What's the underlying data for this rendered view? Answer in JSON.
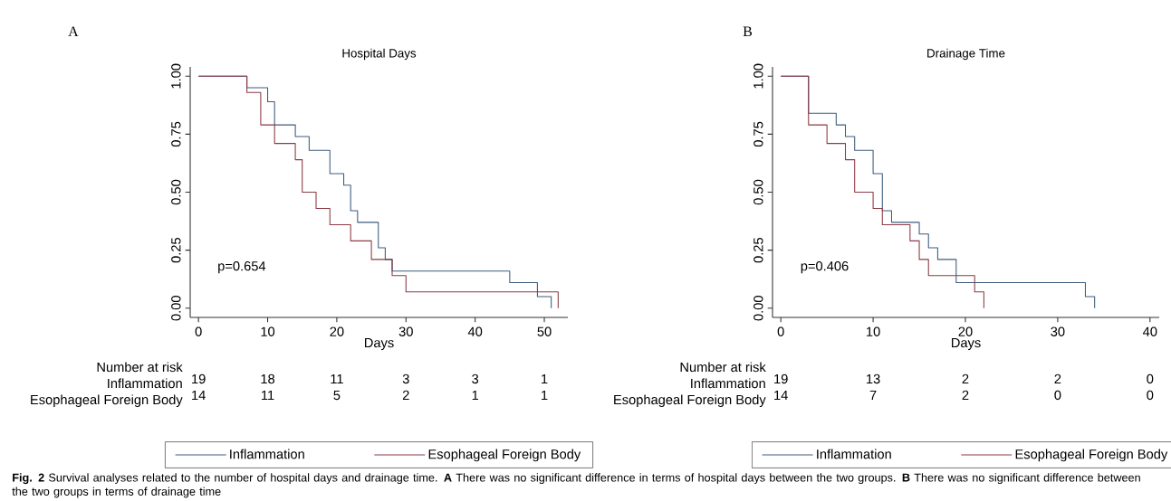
{
  "chart_data": [
    {
      "type": "step",
      "title": "Hospital Days",
      "xlabel": "Days",
      "xlim": [
        -1.2,
        53.4
      ],
      "ylim": [
        -0.04,
        1.04
      ],
      "xticks": [
        0,
        10,
        20,
        30,
        40,
        50
      ],
      "yticks": [
        {
          "value": 0,
          "label": "0.00"
        },
        {
          "value": 0.25,
          "label": "0.25"
        },
        {
          "value": 0.5,
          "label": "0.50"
        },
        {
          "value": 0.75,
          "label": "0.75"
        },
        {
          "value": 1,
          "label": "1.00"
        }
      ],
      "legend": "bottom",
      "grid": false,
      "series": [
        {
          "name": "Inflammation",
          "color": "#3e5c7e",
          "x": [
            0,
            7,
            10,
            11,
            14,
            16,
            19,
            21,
            22,
            23,
            26,
            27,
            28,
            45,
            49,
            51
          ],
          "values": [
            1,
            0.95,
            0.89,
            0.79,
            0.74,
            0.68,
            0.58,
            0.53,
            0.42,
            0.37,
            0.26,
            0.21,
            0.16,
            0.11,
            0.05,
            0
          ]
        },
        {
          "name": "Esophageal Foreign Body",
          "color": "#8b3a44",
          "x": [
            0,
            7,
            9,
            11,
            14,
            15,
            17,
            19,
            22,
            25,
            28,
            30,
            52
          ],
          "values": [
            1,
            0.93,
            0.79,
            0.71,
            0.64,
            0.5,
            0.43,
            0.36,
            0.29,
            0.21,
            0.14,
            0.07,
            0
          ]
        }
      ],
      "annotations": [
        "A",
        "p=0.654",
        "Number at risk",
        "Inflammation",
        "Esophageal Foreign Body",
        "19",
        "18",
        "11",
        "3",
        "3",
        "1",
        "14",
        "11",
        "5",
        "2",
        "1",
        "1",
        "**Fig. 2**  Survival analyses related to the number of hospital days and drainage time. **A** There was no significant difference in terms of hospital days between the two groups. **B** There was no significant difference between the two groups in terms of drainage time"
      ]
    },
    {
      "type": "step",
      "title": "Drainage Time",
      "xlabel": "Days",
      "xlim": [
        -0.9,
        41
      ],
      "ylim": [
        -0.04,
        1.04
      ],
      "xticks": [
        0,
        10,
        20,
        30,
        40
      ],
      "yticks": [
        {
          "value": 0,
          "label": "0.00"
        },
        {
          "value": 0.25,
          "label": "0.25"
        },
        {
          "value": 0.5,
          "label": "0.50"
        },
        {
          "value": 0.75,
          "label": "0.75"
        },
        {
          "value": 1,
          "label": "1.00"
        }
      ],
      "legend": "bottom",
      "grid": false,
      "series": [
        {
          "name": "Inflammation",
          "color": "#3e5c7e",
          "x": [
            0,
            3,
            6,
            7,
            8,
            10,
            11,
            12,
            15,
            16,
            17,
            19,
            33,
            34
          ],
          "values": [
            1,
            0.84,
            0.79,
            0.74,
            0.68,
            0.58,
            0.42,
            0.37,
            0.32,
            0.26,
            0.21,
            0.11,
            0.05,
            0
          ]
        },
        {
          "name": "Esophageal Foreign Body",
          "color": "#8b3a44",
          "x": [
            0,
            3,
            5,
            7,
            8,
            10,
            11,
            14,
            15,
            16,
            21,
            22
          ],
          "values": [
            1,
            0.79,
            0.71,
            0.64,
            0.5,
            0.43,
            0.36,
            0.29,
            0.21,
            0.14,
            0.07,
            0
          ]
        }
      ],
      "annotations": [
        "B",
        "p=0.406",
        "Number at risk",
        "Inflammation",
        "Esophageal Foreign Body",
        "19",
        "13",
        "2",
        "2",
        "0",
        "14",
        "7",
        "2",
        "0",
        "0"
      ]
    }
  ]
}
